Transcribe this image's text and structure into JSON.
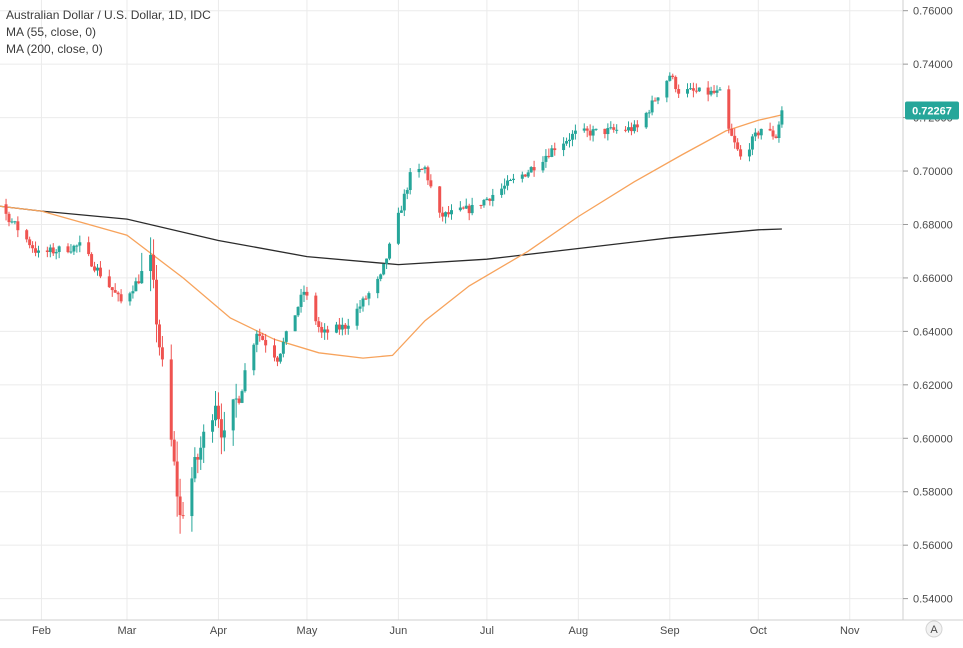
{
  "chart_data": {
    "type": "candlestick",
    "title": "Australian Dollar / U.S. Dollar, 1D, IDC",
    "indicators": [
      {
        "label": "MA (55, close, 0)",
        "color": "#f7a35c"
      },
      {
        "label": "MA (200, close, 0)",
        "color": "#2b2b2b"
      }
    ],
    "last_price": "0.72267",
    "last_price_value": 0.72267,
    "ylim": [
      0.532,
      0.764
    ],
    "y_ticks": [
      "0.76000",
      "0.74000",
      "0.72000",
      "0.70000",
      "0.68000",
      "0.66000",
      "0.64000",
      "0.62000",
      "0.60000",
      "0.58000",
      "0.56000",
      "0.54000"
    ],
    "y_tick_values": [
      0.76,
      0.74,
      0.72,
      0.7,
      0.68,
      0.66,
      0.64,
      0.62,
      0.6,
      0.58,
      0.56,
      0.54
    ],
    "x_ticks": [
      "Feb",
      "Mar",
      "Apr",
      "May",
      "Jun",
      "Jul",
      "Aug",
      "Sep",
      "Oct",
      "Nov"
    ],
    "grid": true,
    "colors": {
      "up": "#26a69a",
      "down": "#ef5350",
      "ma55": "#f7a35c",
      "ma200": "#2b2b2b",
      "price_tag": "#26a69a",
      "grid": "#ebebeb"
    },
    "close_path": [
      [
        "2020-01-01",
        0.7019
      ],
      [
        "2020-01-15",
        0.6905
      ],
      [
        "2020-01-31",
        0.669
      ],
      [
        "2020-02-14",
        0.672
      ],
      [
        "2020-02-28",
        0.651
      ],
      [
        "2020-03-09",
        0.665
      ],
      [
        "2020-03-12",
        0.635
      ],
      [
        "2020-03-18",
        0.58
      ],
      [
        "2020-03-19",
        0.57
      ],
      [
        "2020-03-31",
        0.615
      ],
      [
        "2020-04-03",
        0.599
      ],
      [
        "2020-04-14",
        0.64
      ],
      [
        "2020-04-21",
        0.63
      ],
      [
        "2020-04-30",
        0.655
      ],
      [
        "2020-05-06",
        0.639
      ],
      [
        "2020-05-14",
        0.642
      ],
      [
        "2020-05-26",
        0.66
      ],
      [
        "2020-06-05",
        0.698
      ],
      [
        "2020-06-10",
        0.701
      ],
      [
        "2020-06-15",
        0.683
      ],
      [
        "2020-06-26",
        0.686
      ],
      [
        "2020-07-15",
        0.7
      ],
      [
        "2020-07-24",
        0.709
      ],
      [
        "2020-07-31",
        0.714
      ],
      [
        "2020-08-11",
        0.715
      ],
      [
        "2020-08-21",
        0.716
      ],
      [
        "2020-09-01",
        0.736
      ],
      [
        "2020-09-04",
        0.73
      ],
      [
        "2020-09-18",
        0.729
      ],
      [
        "2020-09-21",
        0.715
      ],
      [
        "2020-09-25",
        0.705
      ],
      [
        "2020-10-02",
        0.716
      ],
      [
        "2020-10-07",
        0.713
      ],
      [
        "2020-10-09",
        0.7227
      ]
    ],
    "ma55_path": [
      [
        "2020-01-01",
        0.689
      ],
      [
        "2020-02-01",
        0.685
      ],
      [
        "2020-03-01",
        0.676
      ],
      [
        "2020-03-20",
        0.66
      ],
      [
        "2020-04-05",
        0.645
      ],
      [
        "2020-04-20",
        0.637
      ],
      [
        "2020-05-05",
        0.632
      ],
      [
        "2020-05-20",
        0.63
      ],
      [
        "2020-05-30",
        0.631
      ],
      [
        "2020-06-10",
        0.644
      ],
      [
        "2020-06-25",
        0.657
      ],
      [
        "2020-07-15",
        0.67
      ],
      [
        "2020-08-01",
        0.683
      ],
      [
        "2020-08-20",
        0.696
      ],
      [
        "2020-09-05",
        0.706
      ],
      [
        "2020-09-20",
        0.715
      ],
      [
        "2020-10-01",
        0.719
      ],
      [
        "2020-10-09",
        0.721
      ]
    ],
    "ma200_path": [
      [
        "2020-01-01",
        0.689
      ],
      [
        "2020-02-01",
        0.685
      ],
      [
        "2020-03-01",
        0.682
      ],
      [
        "2020-04-01",
        0.674
      ],
      [
        "2020-05-01",
        0.668
      ],
      [
        "2020-06-01",
        0.665
      ],
      [
        "2020-07-01",
        0.667
      ],
      [
        "2020-08-01",
        0.671
      ],
      [
        "2020-09-01",
        0.675
      ],
      [
        "2020-10-01",
        0.678
      ],
      [
        "2020-10-09",
        0.6783
      ]
    ],
    "date_start": "2020-01-01",
    "date_end": "2020-10-09"
  },
  "watermark_button": "A"
}
